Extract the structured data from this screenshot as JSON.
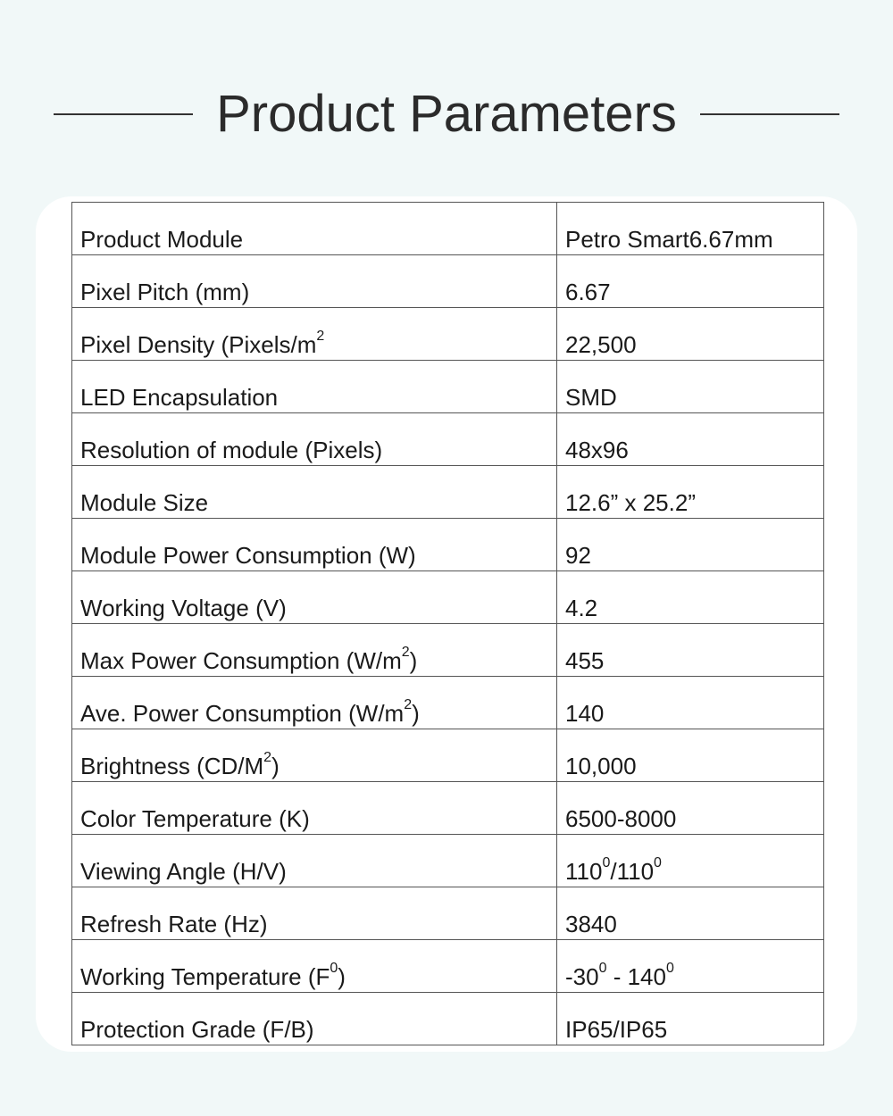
{
  "title": "Product Parameters",
  "rows": [
    {
      "label": [
        {
          "t": "Product Module"
        }
      ],
      "value": [
        {
          "t": "Petro Smart6.67mm"
        }
      ]
    },
    {
      "label": [
        {
          "t": "Pixel Pitch (mm)"
        }
      ],
      "value": [
        {
          "t": "6.67"
        }
      ]
    },
    {
      "label": [
        {
          "t": "Pixel Density (Pixels/m"
        },
        {
          "t": "2",
          "sup": true
        }
      ],
      "value": [
        {
          "t": "22,500"
        }
      ]
    },
    {
      "label": [
        {
          "t": "LED Encapsulation"
        }
      ],
      "value": [
        {
          "t": "SMD"
        }
      ]
    },
    {
      "label": [
        {
          "t": "Resolution of module (Pixels)"
        }
      ],
      "value": [
        {
          "t": "48x96"
        }
      ]
    },
    {
      "label": [
        {
          "t": "Module Size"
        }
      ],
      "value": [
        {
          "t": "12.6” x 25.2”"
        }
      ]
    },
    {
      "label": [
        {
          "t": "Module Power Consumption (W)"
        }
      ],
      "value": [
        {
          "t": "92"
        }
      ]
    },
    {
      "label": [
        {
          "t": "Working Voltage (V)"
        }
      ],
      "value": [
        {
          "t": "4.2"
        }
      ]
    },
    {
      "label": [
        {
          "t": "Max Power Consumption (W/m"
        },
        {
          "t": "2",
          "sup": true
        },
        {
          "t": ")"
        }
      ],
      "value": [
        {
          "t": "455"
        }
      ]
    },
    {
      "label": [
        {
          "t": "Ave. Power Consumption (W/m"
        },
        {
          "t": "2",
          "sup": true
        },
        {
          "t": ")"
        }
      ],
      "value": [
        {
          "t": "140"
        }
      ]
    },
    {
      "label": [
        {
          "t": "Brightness (CD/M"
        },
        {
          "t": "2",
          "sup": true
        },
        {
          "t": ")"
        }
      ],
      "value": [
        {
          "t": "10,000"
        }
      ]
    },
    {
      "label": [
        {
          "t": "Color Temperature (K)"
        }
      ],
      "value": [
        {
          "t": "6500-8000"
        }
      ]
    },
    {
      "label": [
        {
          "t": "Viewing Angle (H/V)"
        }
      ],
      "value": [
        {
          "t": "110"
        },
        {
          "t": "0",
          "sup": true
        },
        {
          "t": "/110"
        },
        {
          "t": "0",
          "sup": true
        }
      ]
    },
    {
      "label": [
        {
          "t": "Refresh Rate (Hz)"
        }
      ],
      "value": [
        {
          "t": "3840"
        }
      ]
    },
    {
      "label": [
        {
          "t": "Working Temperature (F"
        },
        {
          "t": "0",
          "sup": true
        },
        {
          "t": ")"
        }
      ],
      "value": [
        {
          "t": "-30"
        },
        {
          "t": "0",
          "sup": true
        },
        {
          "t": " - 140"
        },
        {
          "t": "0",
          "sup": true
        }
      ]
    },
    {
      "label": [
        {
          "t": "Protection Grade (F/B)"
        }
      ],
      "value": [
        {
          "t": "IP65/IP65"
        }
      ]
    }
  ]
}
